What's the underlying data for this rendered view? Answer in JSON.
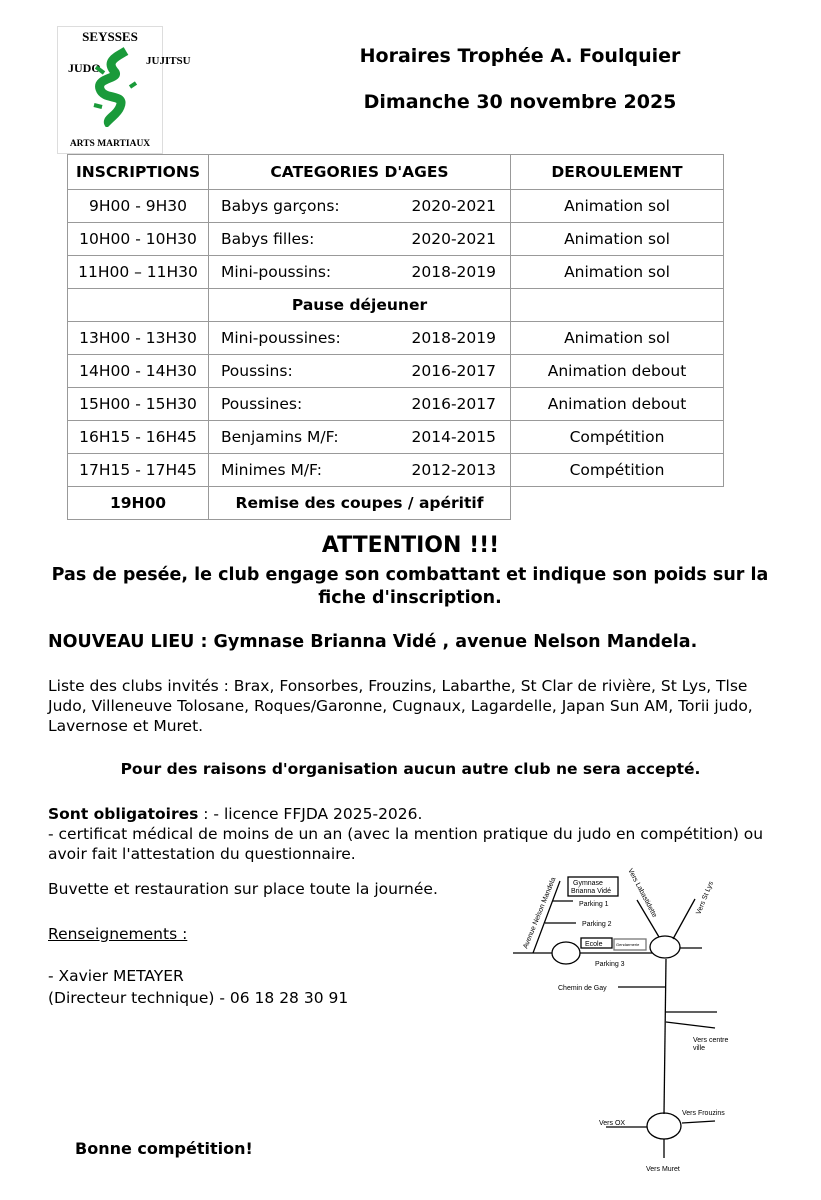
{
  "logo": {
    "top": "SEYSSES",
    "left": "JUDO",
    "right": "JUJITSU",
    "bottom": "ARTS MARTIAUX",
    "color": "#1a9a3a"
  },
  "header": {
    "title": "Horaires Trophée A. Foulquier",
    "date": "Dimanche 30 novembre 2025"
  },
  "table": {
    "headers": [
      "INSCRIPTIONS",
      "CATEGORIES D'AGES",
      "DEROULEMENT"
    ],
    "rows": [
      {
        "time": "9H00 - 9H30",
        "category": "Babys garçons:",
        "years": "2020-2021",
        "activity": "Animation sol"
      },
      {
        "time": "10H00 - 10H30",
        "category": "Babys filles:",
        "years": "2020-2021",
        "activity": "Animation sol"
      },
      {
        "time": "11H00 – 11H30",
        "category": "Mini-poussins:",
        "years": "2018-2019",
        "activity": "Animation sol"
      },
      {
        "pause": "Pause déjeuner"
      },
      {
        "time": "13H00 - 13H30",
        "category": "Mini-poussines:",
        "years": "2018-2019",
        "activity": "Animation sol"
      },
      {
        "time": "14H00 - 14H30",
        "category": "Poussins:",
        "years": "2016-2017",
        "activity": "Animation debout"
      },
      {
        "time": "15H00 - 15H30",
        "category": "Poussines:",
        "years": "2016-2017",
        "activity": "Animation debout"
      },
      {
        "time": "16H15 - 16H45",
        "category": "Benjamins M/F:",
        "years": "2014-2015",
        "activity": "Compétition"
      },
      {
        "time": "17H15 - 17H45",
        "category": "Minimes M/F:",
        "years": "2012-2013",
        "activity": "Compétition"
      }
    ],
    "final": {
      "time": "19H00",
      "label": "Remise des coupes / apéritif"
    }
  },
  "attention": {
    "title": "ATTENTION !!!",
    "text": "Pas de pesée, le club engage son combattant et indique son poids sur la fiche d'inscription."
  },
  "lieu": "NOUVEAU LIEU : Gymnase Brianna Vidé , avenue Nelson Mandela.",
  "clubs": "Liste des clubs invités : Brax, Fonsorbes, Frouzins, Labarthe, St Clar de rivière, St Lys, Tlse Judo, Villeneuve Tolosane, Roques/Garonne, Cugnaux, Lagardelle, Japan Sun AM, Torii judo, Lavernose et Muret.",
  "notice": "Pour des raisons d'organisation aucun autre club ne sera accepté.",
  "obligatoires": {
    "label": "Sont obligatoires",
    "line1": ": - licence FFJDA 2025-2026.",
    "line2": "- certificat médical de moins de un an (avec la mention pratique du judo en compétition) ou avoir fait l'attestation du questionnaire."
  },
  "buvette": "Buvette et restauration sur place toute la journée.",
  "renseignements": {
    "label": "Renseignements :",
    "name": "- Xavier METAYER",
    "role": "(Directeur technique) - 06 18 28 30 91"
  },
  "closing": "Bonne compétition!",
  "map": {
    "gymnase1": "Gymnase",
    "gymnase2": "Brianna Vidé",
    "parking1": "Parking 1",
    "parking2": "Parking 2",
    "parking3": "Parking 3",
    "ecole": "Ecole",
    "gendarmerie": "Gendarmerie",
    "avenue": "Avenue Nelson Mandela",
    "labastidette": "Vers Labastidette",
    "stlys": "Vers St Lys",
    "gay": "Chemin de Gay",
    "centre1": "Vers centre",
    "centre2": "ville",
    "ox": "Vers OX",
    "frouzins": "Vers Frouzins",
    "muret": "Vers Muret"
  }
}
